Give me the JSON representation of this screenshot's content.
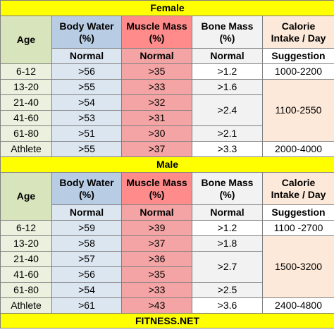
{
  "sections": [
    {
      "title": "Female",
      "header": {
        "age": "Age",
        "body_water": [
          "Body Water",
          "(%)"
        ],
        "muscle_mass": [
          "Muscle Mass",
          "(%)"
        ],
        "bone_mass": [
          "Bone Mass",
          "(%)"
        ],
        "calorie": [
          "Calorie",
          "Intake / Day"
        ]
      },
      "subheader": [
        "Normal",
        "Normal",
        "Normal",
        "Suggestion"
      ],
      "ages": [
        "6-12",
        "13-20",
        "21-40",
        "41-60",
        "61-80",
        "Athlete"
      ],
      "body_water": [
        ">56",
        ">55",
        ">54",
        ">53",
        ">51",
        ">55"
      ],
      "muscle_mass": [
        ">35",
        ">33",
        ">32",
        ">31",
        ">30",
        ">37"
      ],
      "bone_mass": [
        ">1.2",
        ">1.6",
        ">2.4",
        ">2.1",
        ">3.3"
      ],
      "calorie": [
        "1000-2200",
        "1100-2550",
        "2000-4000"
      ]
    },
    {
      "title": "Male",
      "header": {
        "age": "Age",
        "body_water": [
          "Body Water",
          "(%)"
        ],
        "muscle_mass": [
          "Muscle Mass",
          "(%)"
        ],
        "bone_mass": [
          "Bone Mass",
          "(%)"
        ],
        "calorie": [
          "Calorie",
          "Intake / Day"
        ]
      },
      "subheader": [
        "Normal",
        "Normal",
        "Normal",
        "Suggestion"
      ],
      "ages": [
        "6-12",
        "13-20",
        "21-40",
        "41-60",
        "61-80",
        "Athlete"
      ],
      "body_water": [
        ">59",
        ">58",
        ">57",
        ">56",
        ">54",
        ">61"
      ],
      "muscle_mass": [
        ">39",
        ">37",
        ">36",
        ">35",
        ">33",
        ">43"
      ],
      "bone_mass": [
        ">1.2",
        ">1.8",
        ">2.7",
        ">2.5",
        ">3.6"
      ],
      "calorie": [
        "1100 -2700",
        "1500-3200",
        "2400-4800"
      ]
    }
  ],
  "footer": "FITNESS.NET"
}
